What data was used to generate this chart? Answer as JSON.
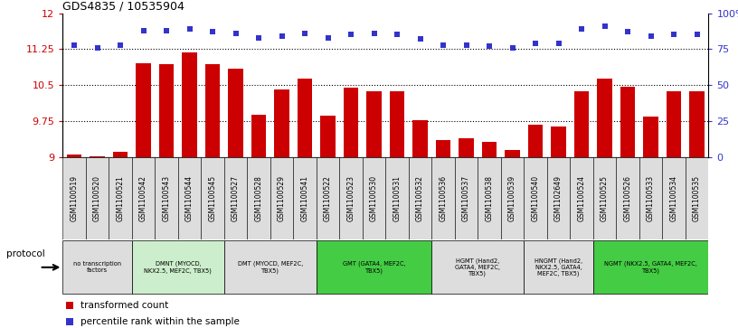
{
  "title": "GDS4835 / 10535904",
  "samples": [
    "GSM1100519",
    "GSM1100520",
    "GSM1100521",
    "GSM1100542",
    "GSM1100543",
    "GSM1100544",
    "GSM1100545",
    "GSM1100527",
    "GSM1100528",
    "GSM1100529",
    "GSM1100541",
    "GSM1100522",
    "GSM1100523",
    "GSM1100530",
    "GSM1100531",
    "GSM1100532",
    "GSM1100536",
    "GSM1100537",
    "GSM1100538",
    "GSM1100539",
    "GSM1100540",
    "GSM1102649",
    "GSM1100524",
    "GSM1100525",
    "GSM1100526",
    "GSM1100533",
    "GSM1100534",
    "GSM1100535"
  ],
  "bar_values": [
    9.07,
    9.03,
    9.12,
    10.95,
    10.93,
    11.18,
    10.93,
    10.85,
    9.88,
    10.42,
    10.63,
    9.87,
    10.45,
    10.38,
    10.37,
    9.77,
    9.36,
    9.4,
    9.33,
    9.16,
    9.68,
    9.65,
    10.38,
    10.63,
    10.47,
    9.85,
    10.38,
    10.37
  ],
  "dot_percentiles": [
    78,
    76,
    78,
    88,
    88,
    89,
    87,
    86,
    83,
    84,
    86,
    83,
    85,
    86,
    85,
    82,
    78,
    78,
    77,
    76,
    79,
    79,
    89,
    91,
    87,
    84,
    85,
    85
  ],
  "ylim_left": [
    9.0,
    12.0
  ],
  "yticks_left": [
    9.0,
    9.75,
    10.5,
    11.25,
    12.0
  ],
  "yticklabels_left": [
    "9",
    "9.75",
    "10.5",
    "11.25",
    "12"
  ],
  "yticks_right_pct": [
    0,
    25,
    50,
    75,
    100
  ],
  "yticklabels_right": [
    "0",
    "25",
    "50",
    "75",
    "100%"
  ],
  "dotted_lines": [
    9.75,
    10.5,
    11.25
  ],
  "bar_color": "#cc0000",
  "dot_color": "#3333cc",
  "protocol_groups": [
    {
      "label": "no transcription\nfactors",
      "start": 0,
      "end": 3,
      "color": "#dddddd"
    },
    {
      "label": "DMNT (MYOCD,\nNKX2.5, MEF2C, TBX5)",
      "start": 3,
      "end": 7,
      "color": "#cceecc"
    },
    {
      "label": "DMT (MYOCD, MEF2C,\nTBX5)",
      "start": 7,
      "end": 11,
      "color": "#dddddd"
    },
    {
      "label": "GMT (GATA4, MEF2C,\nTBX5)",
      "start": 11,
      "end": 16,
      "color": "#44cc44"
    },
    {
      "label": "HGMT (Hand2,\nGATA4, MEF2C,\nTBX5)",
      "start": 16,
      "end": 20,
      "color": "#dddddd"
    },
    {
      "label": "HNGMT (Hand2,\nNKX2.5, GATA4,\nMEF2C, TBX5)",
      "start": 20,
      "end": 23,
      "color": "#dddddd"
    },
    {
      "label": "NGMT (NKX2.5, GATA4, MEF2C,\nTBX5)",
      "start": 23,
      "end": 28,
      "color": "#44cc44"
    }
  ],
  "legend_items": [
    {
      "color": "#cc0000",
      "label": "transformed count"
    },
    {
      "color": "#3333cc",
      "label": "percentile rank within the sample"
    }
  ]
}
